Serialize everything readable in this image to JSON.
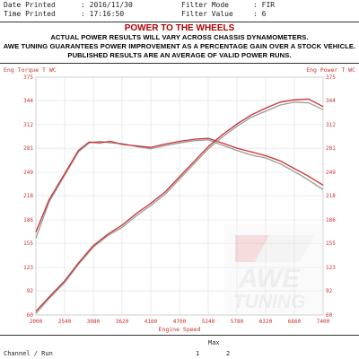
{
  "header": {
    "date_printed_label": "Date Printed",
    "date_printed_value": ": 2016/11/30",
    "time_printed_label": "Time Printed",
    "time_printed_value": ": 17:16:50",
    "filter_mode_label": "Filter Mode",
    "filter_mode_value": ": FIR",
    "filter_value_label": "Filter Value",
    "filter_value_value": ": 6"
  },
  "banner": {
    "title": "POWER TO THE WHEELS",
    "lines": [
      "ACTUAL POWER RESULTS WILL VARY ACROSS CHASSIS DYNAMOMETERS.",
      "AWE TUNING GUARANTEES POWER IMPROVEMENT AS A PERCENTAGE GAIN OVER A STOCK VEHICLE.",
      "PUBLISHED RESULTS ARE AN AVERAGE OF VALID POWER RUNS."
    ]
  },
  "logo": {
    "line1": "AWE",
    "line2": "TUNING"
  },
  "footer": {
    "max_label": "Max",
    "channel_label": "Channel / Run",
    "run_numbers": [
      "1",
      "2"
    ]
  },
  "colors": {
    "run1": "#9a9a9a",
    "run2": "#c83030",
    "axis_label": "#c83030",
    "banner_title": "#b00000"
  },
  "chart_data": {
    "type": "line",
    "xlabel": "Engine Speed",
    "ylabel_left": "Eng Torque T WC",
    "ylabel_right": "Eng Power T WC",
    "xlim": [
      2000,
      7400
    ],
    "ylim": [
      60,
      375
    ],
    "x_ticks": [
      2000,
      2540,
      3080,
      3620,
      4160,
      4700,
      5240,
      5780,
      6320,
      6860,
      7400
    ],
    "y_ticks": [
      60,
      92,
      123,
      155,
      186,
      218,
      249,
      281,
      312,
      344,
      375
    ],
    "grid": true,
    "series": [
      {
        "run": "1",
        "metric": "torque",
        "x": [
          2000,
          2250,
          2540,
          2800,
          3000,
          3200,
          3400,
          3620,
          3900,
          4160,
          4400,
          4700,
          5000,
          5240,
          5500,
          5780,
          6050,
          6320,
          6600,
          6860,
          7100,
          7400
        ],
        "y": [
          162,
          210,
          245,
          276,
          288,
          290,
          288,
          287,
          283,
          280,
          284,
          288,
          291,
          292,
          285,
          278,
          272,
          268,
          260,
          250,
          240,
          226
        ]
      },
      {
        "run": "2",
        "metric": "torque",
        "x": [
          2000,
          2250,
          2540,
          2800,
          3000,
          3200,
          3400,
          3620,
          3900,
          4160,
          4400,
          4700,
          5000,
          5240,
          5500,
          5780,
          6050,
          6320,
          6600,
          6860,
          7100,
          7400
        ],
        "y": [
          170,
          213,
          247,
          278,
          289,
          288,
          290,
          286,
          284,
          282,
          286,
          290,
          293,
          294,
          288,
          281,
          276,
          271,
          264,
          254,
          245,
          232
        ]
      },
      {
        "run": "1",
        "metric": "power",
        "x": [
          2000,
          2250,
          2540,
          2800,
          3080,
          3350,
          3620,
          3900,
          4160,
          4430,
          4700,
          4970,
          5240,
          5510,
          5780,
          6050,
          6320,
          6590,
          6860,
          7130,
          7400
        ],
        "y": [
          62,
          82,
          103,
          127,
          150,
          165,
          176,
          192,
          205,
          220,
          240,
          260,
          280,
          296,
          310,
          322,
          330,
          338,
          342,
          341,
          332
        ]
      },
      {
        "run": "2",
        "metric": "power",
        "x": [
          2000,
          2250,
          2540,
          2800,
          3080,
          3350,
          3620,
          3900,
          4160,
          4430,
          4700,
          4970,
          5240,
          5510,
          5780,
          6050,
          6320,
          6590,
          6860,
          7130,
          7400
        ],
        "y": [
          65,
          84,
          105,
          129,
          152,
          167,
          179,
          195,
          208,
          223,
          243,
          263,
          283,
          299,
          313,
          325,
          334,
          342,
          345,
          346,
          336
        ]
      }
    ]
  }
}
